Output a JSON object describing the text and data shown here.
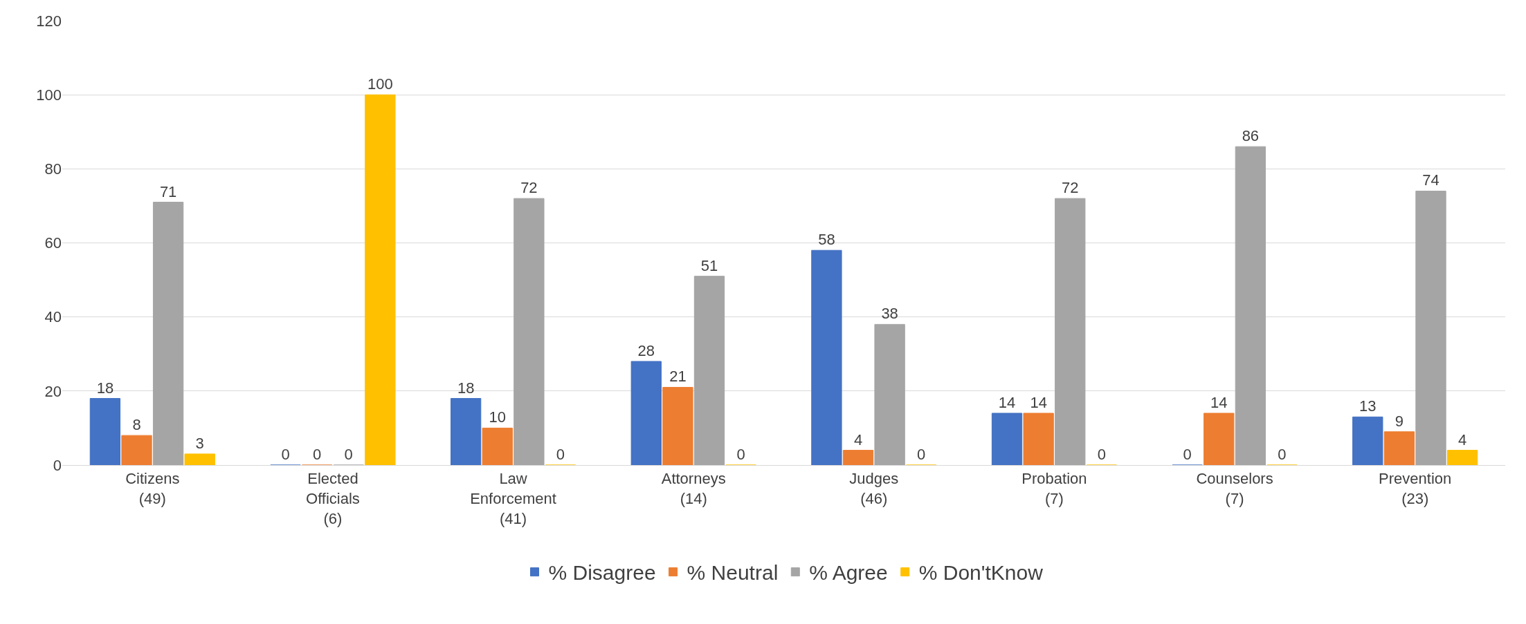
{
  "chart_data": {
    "type": "bar",
    "categories": [
      "Citizens (49)",
      "Elected Officials (6)",
      "Law Enforcement (41)",
      "Attorneys (14)",
      "Judges (46)",
      "Probation (7)",
      "Counselors (7)",
      "Prevention (23)"
    ],
    "series": [
      {
        "name": "% Disagree",
        "color": "#4472c4",
        "values": [
          18,
          0,
          18,
          28,
          58,
          14,
          0,
          13
        ]
      },
      {
        "name": "% Neutral",
        "color": "#ed7d31",
        "values": [
          8,
          0,
          10,
          21,
          4,
          14,
          14,
          9
        ]
      },
      {
        "name": "% Agree",
        "color": "#a5a5a5",
        "values": [
          71,
          0,
          72,
          51,
          38,
          72,
          86,
          74
        ]
      },
      {
        "name": "% Don'tKnow",
        "color": "#ffc000",
        "values": [
          3,
          100,
          0,
          0,
          0,
          0,
          0,
          4
        ]
      }
    ],
    "ylim": [
      0,
      120
    ],
    "yticks": [
      0,
      20,
      40,
      60,
      80,
      100,
      120
    ],
    "grid": "y",
    "legend": "bottom",
    "data_labels": true
  }
}
